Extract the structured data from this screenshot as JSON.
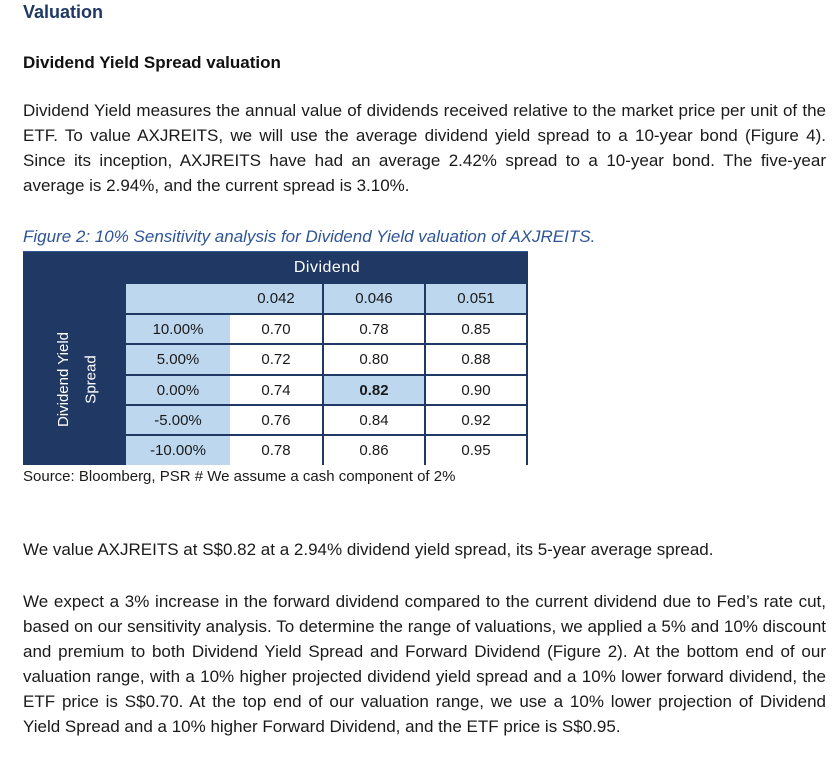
{
  "section_title": "Valuation",
  "subsection_title": "Dividend Yield Spread valuation",
  "paragraph_1": "Dividend Yield measures the annual value of dividends received relative to the market price per unit of the ETF. To value AXJREITS, we will use the average dividend yield spread to a 10-year bond (Figure 4). Since its inception, AXJREITS have had an average 2.42% spread to a 10-year bond. The five-year average is 2.94%, and the current spread is 3.10%.",
  "figure": {
    "caption": "Figure 2: 10% Sensitivity analysis for Dividend Yield valuation of AXJREITS.",
    "column_header": "Dividend",
    "row_header_line1": "Dividend Yield",
    "row_header_line2": "Spread",
    "columns": [
      "0.042",
      "0.046",
      "0.051"
    ],
    "rows": [
      {
        "label": "10.00%",
        "values": [
          "0.70",
          "0.78",
          "0.85"
        ]
      },
      {
        "label": "5.00%",
        "values": [
          "0.72",
          "0.80",
          "0.88"
        ]
      },
      {
        "label": "0.00%",
        "values": [
          "0.74",
          "0.82",
          "0.90"
        ]
      },
      {
        "label": "-5.00%",
        "values": [
          "0.76",
          "0.84",
          "0.92"
        ]
      },
      {
        "label": "-10.00%",
        "values": [
          "0.78",
          "0.86",
          "0.95"
        ]
      }
    ],
    "highlight_color": "#bdd7ee",
    "header_color": "#1f3864",
    "source": "Source: Bloomberg, PSR  # We assume a cash component of 2%"
  },
  "paragraph_2": "We value AXJREITS at S$0.82 at a 2.94% dividend yield spread, its 5-year average spread.",
  "paragraph_3": "We expect a 3% increase in the forward dividend compared to the current dividend due to Fed’s rate cut, based on our sensitivity analysis. To determine the range of valuations, we applied a 5% and 10% discount and premium to both Dividend Yield Spread and Forward Dividend (Figure 2). At the bottom end of our valuation range, with a 10% higher projected dividend yield spread and a 10% lower forward dividend, the ETF price is S$0.70. At the top end of our valuation range, we use a 10% lower projection of Dividend Yield Spread and a 10% higher Forward Dividend, and the ETF price is S$0.95."
}
